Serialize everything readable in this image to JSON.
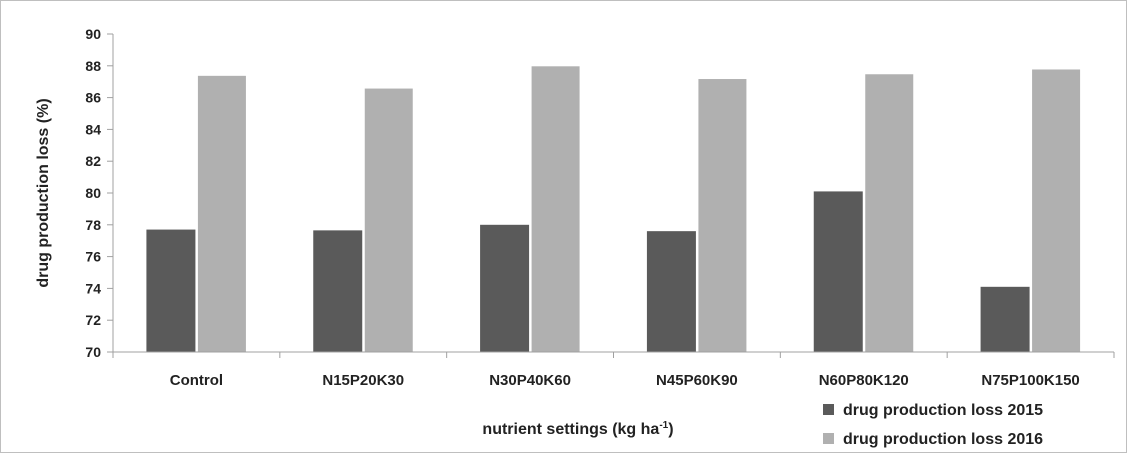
{
  "chart_data": {
    "type": "bar",
    "categories": [
      "Control",
      "N15P20K30",
      "N30P40K60",
      "N45P60K90",
      "N60P80K120",
      "N75P100K150"
    ],
    "series": [
      {
        "name": "drug production loss 2015",
        "values": [
          77.7,
          77.65,
          78.0,
          77.6,
          80.1,
          74.1
        ],
        "color": "#5a5a5a"
      },
      {
        "name": "drug production loss 2016",
        "values": [
          87.4,
          86.6,
          88.0,
          87.2,
          87.5,
          87.8
        ],
        "color": "#b0b0b0"
      }
    ],
    "title": "",
    "xlabel": {
      "text": "nutrient settings (kg ha",
      "sup": "-1",
      "suffix": ")"
    },
    "ylabel": "drug production loss (%)",
    "ylim": [
      70,
      90
    ],
    "yticks": [
      "70",
      "72",
      "74",
      "76",
      "78",
      "80",
      "82",
      "84",
      "86",
      "88",
      "90"
    ],
    "grid": false,
    "legend_position": "bottom-right",
    "colors": {
      "frame": "#bfbfbf",
      "axis": "#a0a0a0"
    }
  }
}
